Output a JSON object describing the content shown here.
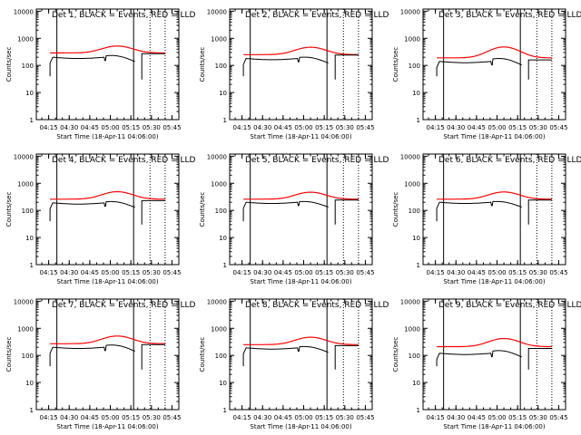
{
  "colors": {
    "events": "#000000",
    "lld": "#ff0000",
    "axes": "#000000",
    "background": "#ffffff"
  },
  "chart_data": {
    "type": "line",
    "yscale": "log",
    "ylim": [
      1,
      12000
    ],
    "xlim": [
      "04:06",
      "05:50"
    ],
    "grid": false,
    "ylabel": "Counts/sec",
    "xlabel": "Start Time (18-Apr-11 04:06:00)",
    "xticks": [
      "04:15",
      "04:30",
      "04:45",
      "05:00",
      "05:15",
      "05:30",
      "05:45"
    ],
    "yticks": [
      "1",
      "10",
      "100",
      "1000",
      "10000"
    ],
    "panels": [
      {
        "title": "Det 1, BLACK = Events, RED = LLD",
        "events_level": 200,
        "lld_level": 290,
        "lld_peak": 520,
        "events_peak": 230,
        "after_events": 270,
        "solid_lines": [
          "04:21",
          "05:17"
        ],
        "dotted_lines": [
          "05:29",
          "05:40"
        ]
      },
      {
        "title": "Det 2, BLACK = Events, RED = LLD",
        "events_level": 180,
        "lld_level": 250,
        "lld_peak": 470,
        "events_peak": 200,
        "after_events": 240,
        "solid_lines": [
          "04:21",
          "05:17"
        ],
        "dotted_lines": [
          "05:29",
          "05:40"
        ]
      },
      {
        "title": "Det 3, BLACK = Events, RED = LLD",
        "events_level": 140,
        "lld_level": 190,
        "lld_peak": 480,
        "events_peak": 180,
        "after_events": 160,
        "solid_lines": [
          "04:21",
          "05:17"
        ],
        "dotted_lines": [
          "05:29",
          "05:40"
        ]
      },
      {
        "title": "Det 4, BLACK = Events, RED = LLD",
        "events_level": 190,
        "lld_level": 260,
        "lld_peak": 490,
        "events_peak": 210,
        "after_events": 230,
        "solid_lines": [
          "04:21",
          "05:17"
        ],
        "dotted_lines": [
          "05:29",
          "05:40"
        ]
      },
      {
        "title": "Det 5, BLACK = Events, RED = LLD",
        "events_level": 200,
        "lld_level": 260,
        "lld_peak": 470,
        "events_peak": 210,
        "after_events": 240,
        "solid_lines": [
          "04:21",
          "05:17"
        ],
        "dotted_lines": [
          "05:29",
          "05:40"
        ]
      },
      {
        "title": "Det 6, BLACK = Events, RED = LLD",
        "events_level": 200,
        "lld_level": 260,
        "lld_peak": 480,
        "events_peak": 210,
        "after_events": 240,
        "solid_lines": [
          "04:21",
          "05:17"
        ],
        "dotted_lines": [
          "05:29",
          "05:40"
        ]
      },
      {
        "title": "Det 7, BLACK = Events, RED = LLD",
        "events_level": 200,
        "lld_level": 270,
        "lld_peak": 520,
        "events_peak": 240,
        "after_events": 250,
        "solid_lines": [
          "04:21",
          "05:17"
        ],
        "dotted_lines": [
          "05:29",
          "05:40"
        ]
      },
      {
        "title": "Det 8, BLACK = Events, RED = LLD",
        "events_level": 190,
        "lld_level": 250,
        "lld_peak": 470,
        "events_peak": 210,
        "after_events": 230,
        "solid_lines": [
          "04:21",
          "05:17"
        ],
        "dotted_lines": [
          "05:29",
          "05:40"
        ]
      },
      {
        "title": "Det 9, BLACK = Events, RED = LLD",
        "events_level": 120,
        "lld_level": 210,
        "lld_peak": 420,
        "events_peak": 150,
        "after_events": 180,
        "solid_lines": [
          "04:21",
          "05:17"
        ],
        "dotted_lines": [
          "05:29",
          "05:40"
        ]
      }
    ]
  }
}
